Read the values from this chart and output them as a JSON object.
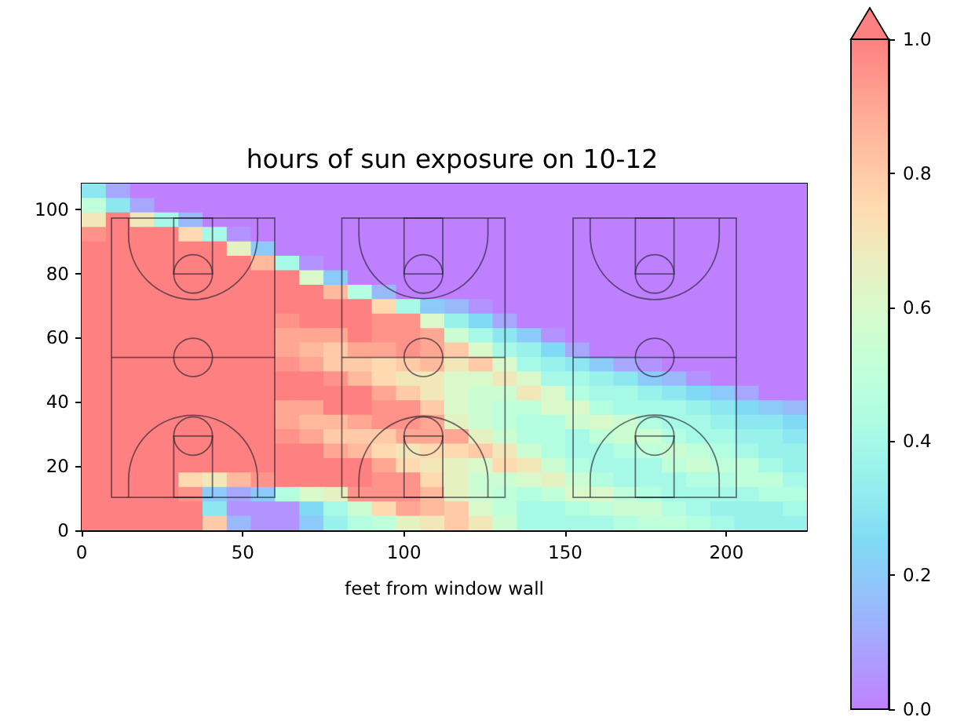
{
  "chart_data": {
    "type": "heatmap",
    "title": "hours of sun exposure on 10-12",
    "xlabel": "feet from window wall",
    "x": [
      3.75,
      11.25,
      18.75,
      26.25,
      33.75,
      41.25,
      48.75,
      56.25,
      63.75,
      71.25,
      78.75,
      86.25,
      93.75,
      101.25,
      108.75,
      116.25,
      123.75,
      131.25,
      138.75,
      146.25,
      153.75,
      161.25,
      168.75,
      176.25,
      183.75,
      191.25,
      198.75,
      206.25,
      213.75,
      221.25
    ],
    "xlim": [
      0,
      225
    ],
    "ylim": [
      0,
      108
    ],
    "xticks": [
      0,
      50,
      100,
      150,
      200
    ],
    "yticks": [
      0,
      20,
      40,
      60,
      80,
      100
    ],
    "clim": [
      0,
      1
    ],
    "cticks": [
      {
        "value": 0,
        "label": "0.0"
      },
      {
        "value": 0.2,
        "label": "0.2"
      },
      {
        "value": 0.4,
        "label": "0.4"
      },
      {
        "value": 0.6,
        "label": "0.6"
      },
      {
        "value": 0.8,
        "label": "0.8"
      },
      {
        "value": 1,
        "label": "1.0"
      }
    ],
    "cells": [
      [
        0.3,
        0.1,
        0,
        0,
        0,
        0,
        0,
        0,
        0,
        0,
        0,
        0,
        0,
        0,
        0,
        0,
        0,
        0,
        0,
        0,
        0,
        0,
        0,
        0,
        0,
        0,
        0,
        0,
        0,
        0
      ],
      [
        0.5,
        0.3,
        0.1,
        0,
        0,
        0,
        0,
        0,
        0,
        0,
        0,
        0,
        0,
        0,
        0,
        0,
        0,
        0,
        0,
        0,
        0,
        0,
        0,
        0,
        0,
        0,
        0,
        0,
        0,
        0
      ],
      [
        0.7,
        1,
        0.7,
        0.4,
        0.15,
        0,
        0,
        0,
        0,
        0,
        0,
        0,
        0,
        0,
        0,
        0,
        0,
        0,
        0,
        0,
        0,
        0,
        0,
        0,
        0,
        0,
        0,
        0,
        0,
        0
      ],
      [
        0.95,
        1,
        1,
        1,
        0.75,
        0.4,
        0.05,
        0,
        0,
        0,
        0,
        0,
        0,
        0,
        0,
        0,
        0,
        0,
        0,
        0,
        0,
        0,
        0,
        0,
        0,
        0,
        0,
        0,
        0,
        0
      ],
      [
        1,
        1,
        1,
        1,
        1,
        1,
        0.65,
        0.2,
        0,
        0,
        0,
        0,
        0,
        0,
        0,
        0,
        0,
        0,
        0,
        0,
        0,
        0,
        0,
        0,
        0,
        0,
        0,
        0,
        0,
        0
      ],
      [
        1,
        1,
        1,
        1,
        1,
        1,
        1,
        0.85,
        0.4,
        0.05,
        0,
        0,
        0,
        0,
        0,
        0,
        0,
        0,
        0,
        0,
        0,
        0,
        0,
        0,
        0,
        0,
        0,
        0,
        0,
        0
      ],
      [
        1,
        1,
        1,
        1,
        1,
        1,
        1,
        1,
        1,
        0.6,
        0.2,
        0,
        0,
        0,
        0,
        0,
        0,
        0,
        0,
        0,
        0,
        0,
        0,
        0,
        0,
        0,
        0,
        0,
        0,
        0
      ],
      [
        1,
        1,
        1,
        1,
        1,
        1,
        1,
        1,
        1,
        1,
        0.85,
        0.45,
        0.15,
        0,
        0,
        0,
        0,
        0,
        0,
        0,
        0,
        0,
        0,
        0,
        0,
        0,
        0,
        0,
        0,
        0
      ],
      [
        1,
        1,
        1,
        1,
        1,
        1,
        1,
        1,
        1,
        1,
        1,
        1,
        0.75,
        0.4,
        0.2,
        0.15,
        0.05,
        0,
        0,
        0,
        0,
        0,
        0,
        0,
        0,
        0,
        0,
        0,
        0,
        0
      ],
      [
        1,
        1,
        1,
        1,
        1,
        1,
        1,
        1,
        0.95,
        1,
        1,
        1,
        0.95,
        0.95,
        0.6,
        0.35,
        0.25,
        0.1,
        0,
        0,
        0,
        0,
        0,
        0,
        0,
        0,
        0,
        0,
        0,
        0
      ],
      [
        1,
        1,
        1,
        1,
        1,
        1,
        1,
        1,
        0.9,
        0.9,
        0.9,
        1,
        0.95,
        0.95,
        0.9,
        0.55,
        0.4,
        0.3,
        0.2,
        0.05,
        0,
        0,
        0,
        0,
        0,
        0,
        0,
        0,
        0,
        0
      ],
      [
        1,
        1,
        1,
        1,
        1,
        1,
        1,
        1,
        0.9,
        0.85,
        0.8,
        0.9,
        0.9,
        0.95,
        0.9,
        0.8,
        0.6,
        0.4,
        0.35,
        0.25,
        0.1,
        0,
        0,
        0,
        0,
        0,
        0,
        0,
        0,
        0
      ],
      [
        1,
        1,
        1,
        1,
        1,
        1,
        1,
        1,
        0.95,
        0.9,
        0.8,
        0.8,
        0.75,
        0.8,
        0.85,
        0.7,
        0.8,
        0.6,
        0.4,
        0.35,
        0.3,
        0.2,
        0.1,
        0.05,
        0,
        0,
        0,
        0,
        0,
        0
      ],
      [
        1,
        1,
        1,
        1,
        1,
        1,
        1,
        1,
        1,
        1,
        0.95,
        0.85,
        0.75,
        0.7,
        0.7,
        0.6,
        0.6,
        0.7,
        0.6,
        0.4,
        0.4,
        0.35,
        0.3,
        0.2,
        0.15,
        0.05,
        0,
        0,
        0,
        0
      ],
      [
        1,
        1,
        1,
        1,
        1,
        1,
        1,
        1,
        1,
        1,
        1,
        1,
        0.9,
        0.8,
        0.7,
        0.6,
        0.55,
        0.55,
        0.7,
        0.6,
        0.45,
        0.4,
        0.4,
        0.35,
        0.3,
        0.25,
        0.2,
        0.1,
        0,
        0
      ],
      [
        1,
        1,
        1,
        1,
        1,
        1,
        1,
        1,
        0.9,
        0.9,
        1,
        1,
        0.95,
        0.95,
        0.8,
        0.6,
        0.55,
        0.5,
        0.5,
        0.6,
        0.6,
        0.45,
        0.4,
        0.4,
        0.4,
        0.35,
        0.3,
        0.25,
        0.2,
        0.15
      ],
      [
        1,
        1,
        1,
        1,
        1,
        1,
        1,
        1,
        0.9,
        0.85,
        0.85,
        0.9,
        0.95,
        0.95,
        0.9,
        0.65,
        0.55,
        0.5,
        0.45,
        0.45,
        0.55,
        0.6,
        0.55,
        0.45,
        0.4,
        0.4,
        0.35,
        0.3,
        0.3,
        0.25
      ],
      [
        1,
        1,
        1,
        1,
        1,
        1,
        1,
        1,
        0.95,
        0.9,
        0.8,
        0.8,
        0.8,
        0.9,
        0.9,
        0.9,
        0.65,
        0.55,
        0.45,
        0.45,
        0.4,
        0.5,
        0.55,
        0.55,
        0.45,
        0.4,
        0.4,
        0.35,
        0.35,
        0.3
      ],
      [
        1,
        1,
        1,
        1,
        1,
        1,
        1,
        1,
        1,
        1,
        0.9,
        0.85,
        0.75,
        0.7,
        0.75,
        0.75,
        0.8,
        0.7,
        0.55,
        0.45,
        0.4,
        0.4,
        0.45,
        0.5,
        0.55,
        0.5,
        0.45,
        0.4,
        0.35,
        0.35
      ],
      [
        1,
        1,
        1,
        1,
        1,
        1,
        1,
        1,
        1,
        1,
        1,
        1,
        0.9,
        0.75,
        0.7,
        0.65,
        0.6,
        0.75,
        0.7,
        0.55,
        0.45,
        0.4,
        0.4,
        0.4,
        0.5,
        0.55,
        0.5,
        0.5,
        0.4,
        0.35
      ],
      [
        1,
        1,
        1,
        1,
        0.75,
        0.7,
        0.85,
        0.95,
        1,
        1,
        1,
        1,
        0.95,
        0.95,
        0.75,
        0.65,
        0.55,
        0.55,
        0.6,
        0.65,
        0.55,
        0.45,
        0.4,
        0.4,
        0.4,
        0.45,
        0.45,
        0.5,
        0.5,
        0.4
      ],
      [
        1,
        1,
        1,
        1,
        0.95,
        0.2,
        0.1,
        0.2,
        0.45,
        0.6,
        0.65,
        0.95,
        0.95,
        0.95,
        0.85,
        0.65,
        0.55,
        0.5,
        0.45,
        0.5,
        0.6,
        0.6,
        0.5,
        0.45,
        0.4,
        0.4,
        0.4,
        0.4,
        0.45,
        0.45
      ],
      [
        1,
        1,
        1,
        1,
        1,
        0.3,
        0.05,
        0.05,
        0.05,
        0.25,
        0.4,
        0.55,
        0.75,
        0.9,
        0.85,
        0.8,
        0.6,
        0.5,
        0.4,
        0.4,
        0.45,
        0.5,
        0.55,
        0.55,
        0.45,
        0.4,
        0.35,
        0.35,
        0.35,
        0.4
      ],
      [
        1,
        1,
        1,
        1,
        1,
        0.8,
        0.15,
        0.05,
        0.05,
        0.2,
        0.35,
        0.45,
        0.5,
        0.65,
        0.7,
        0.8,
        0.7,
        0.55,
        0.4,
        0.4,
        0.4,
        0.4,
        0.45,
        0.5,
        0.5,
        0.45,
        0.4,
        0.35,
        0.35,
        0.35
      ]
    ]
  }
}
